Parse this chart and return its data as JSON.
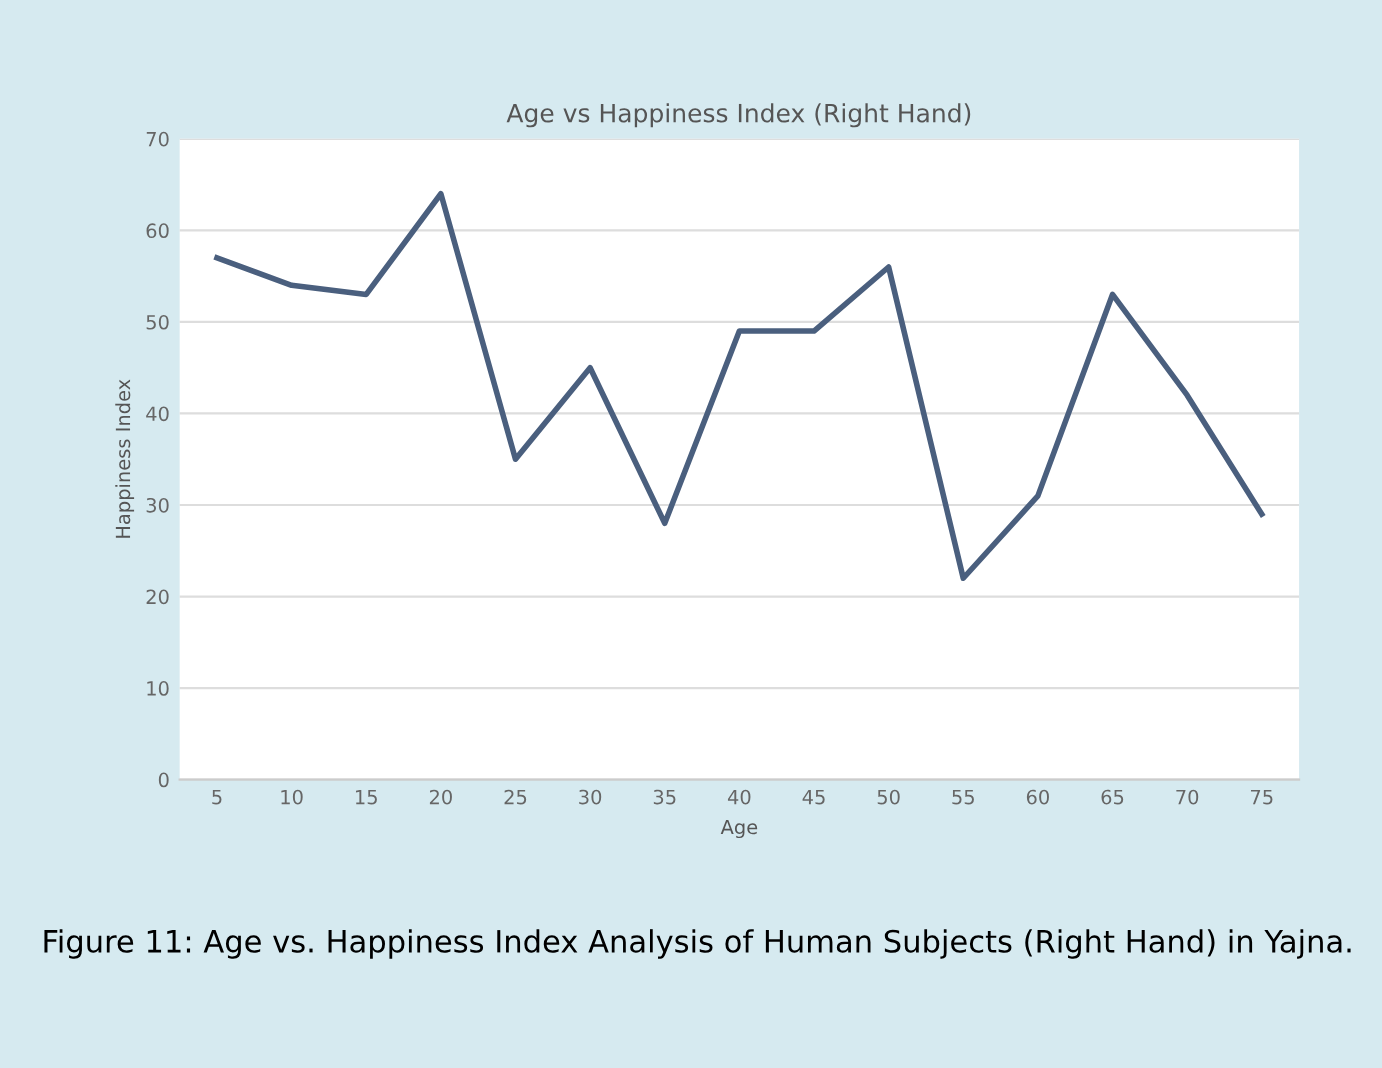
{
  "chart_data": {
    "type": "line",
    "title": "Age vs Happiness Index (Right Hand)",
    "xlabel": "Age",
    "ylabel": "Happiness Index",
    "categories": [
      "5",
      "10",
      "15",
      "20",
      "25",
      "30",
      "35",
      "40",
      "45",
      "50",
      "55",
      "60",
      "65",
      "70",
      "75"
    ],
    "series": [
      {
        "color": "#4a5f7e",
        "values": [
          57,
          54,
          53,
          64,
          35,
          45,
          28,
          49,
          49,
          56,
          22,
          31,
          53,
          42,
          29
        ]
      }
    ],
    "ylim": [
      0,
      70
    ],
    "yticks": [
      0,
      10,
      20,
      30,
      40,
      50,
      60,
      70
    ],
    "grid": "y",
    "marker": "none",
    "line_style": "solid",
    "annotations": [
      "Figure 11: Age vs. Happiness Index Analysis of Human Subjects (Right Hand) in Yajna."
    ]
  }
}
